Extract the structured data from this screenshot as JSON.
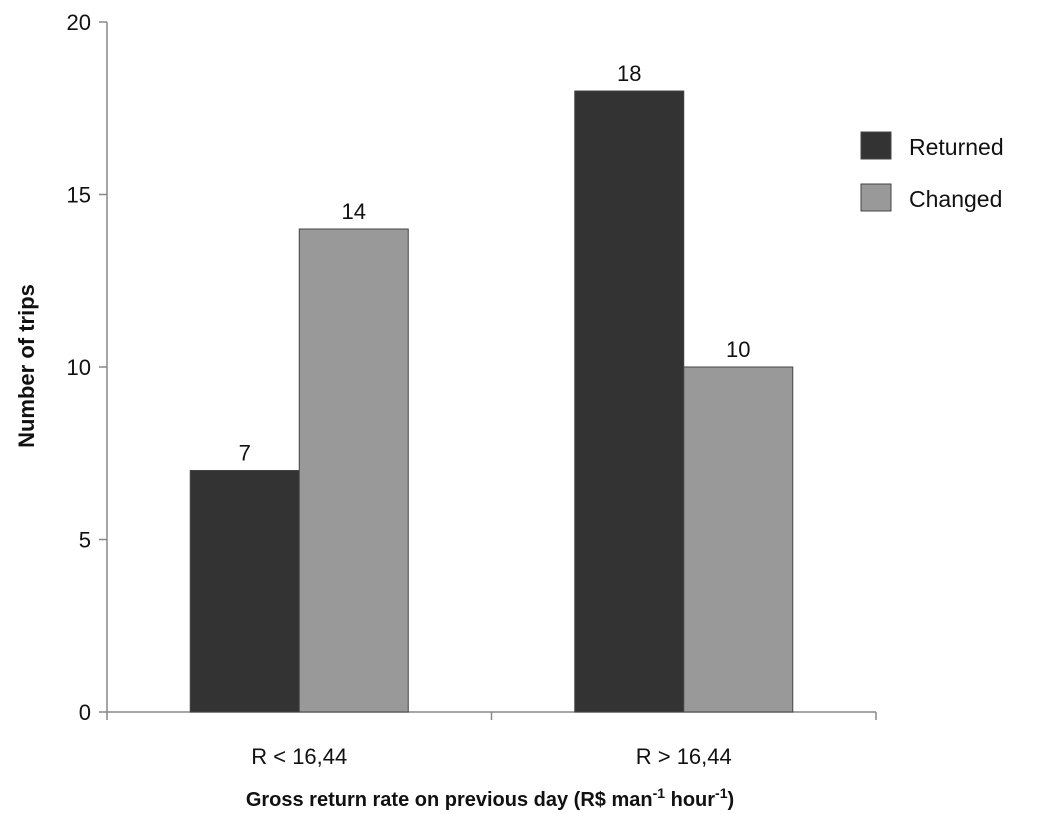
{
  "chart_data": {
    "type": "bar",
    "categories": [
      "R < 16,44",
      "R > 16,44"
    ],
    "series": [
      {
        "name": "Returned",
        "values": [
          7,
          18
        ],
        "color": "#333333"
      },
      {
        "name": "Changed",
        "values": [
          14,
          10
        ],
        "color": "#999999"
      }
    ],
    "title": "",
    "xlabel": "Gross return rate on previous day (R$ man",
    "xlabel_sup1": "-1",
    "xlabel_mid": " hour",
    "xlabel_sup2": "-1",
    "xlabel_end": ")",
    "ylabel": "Number of trips",
    "ylim": [
      0,
      20
    ],
    "yticks": [
      0,
      5,
      10,
      15,
      20
    ],
    "grid": false,
    "legend": "right",
    "data_labels": true
  }
}
